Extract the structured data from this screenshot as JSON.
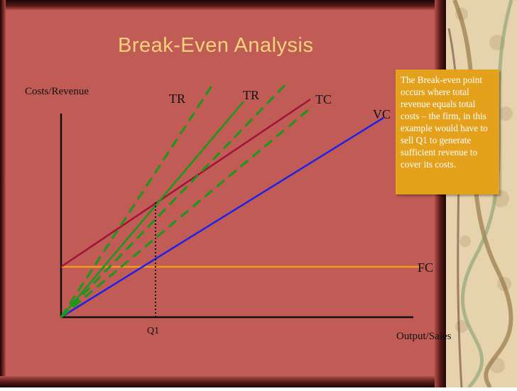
{
  "title": "Break-Even Analysis",
  "axes": {
    "y_label": "Costs/Revenue",
    "x_label": "Output/Sales",
    "q1_label": "Q1"
  },
  "lines": {
    "fc": "FC",
    "vc": "VC",
    "tc": "TC",
    "tr_left": "TR",
    "tr_right": "TR"
  },
  "callout": {
    "text": "The Break-even point occurs where total revenue equals total costs – the firm, in this example would have to sell Q1 to generate sufficient revenue to cover its costs."
  },
  "colors": {
    "background": "#c05b56",
    "title": "#f4d27a",
    "fc_line": "#f29a1e",
    "vc_line": "#1e22e6",
    "tc_line": "#a0143a",
    "tr_line": "#179a18",
    "callout_bg": "#e3a11c",
    "border_strip": "#2a0b0b",
    "decor_panel": "#e6d3ad",
    "axis": "#111111"
  },
  "decor": {
    "pattern": "floral-wallpaper"
  }
}
